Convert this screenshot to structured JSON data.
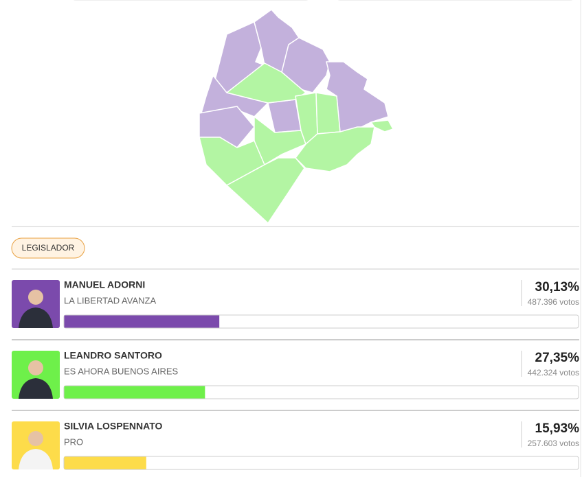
{
  "section": {
    "badge": "LEGISLADOR"
  },
  "candidates": [
    {
      "name": "MANUEL ADORNI",
      "party": "LA LIBERTAD AVANZA",
      "share": {
        "value": 30.13,
        "label": "30,13%"
      },
      "votes": "487.396 votos",
      "color": "#7b4aac"
    },
    {
      "name": "LEANDRO SANTORO",
      "party": "ES AHORA BUENOS AIRES",
      "share": {
        "value": 27.35,
        "label": "27,35%"
      },
      "votes": "442.324 votos",
      "color": "#6ef04a"
    },
    {
      "name": "SILVIA LOSPENNATO",
      "party": "PRO",
      "share": {
        "value": 15.93,
        "label": "15,93%"
      },
      "votes": "257.603 votos",
      "color": "#fddc4a"
    }
  ]
}
